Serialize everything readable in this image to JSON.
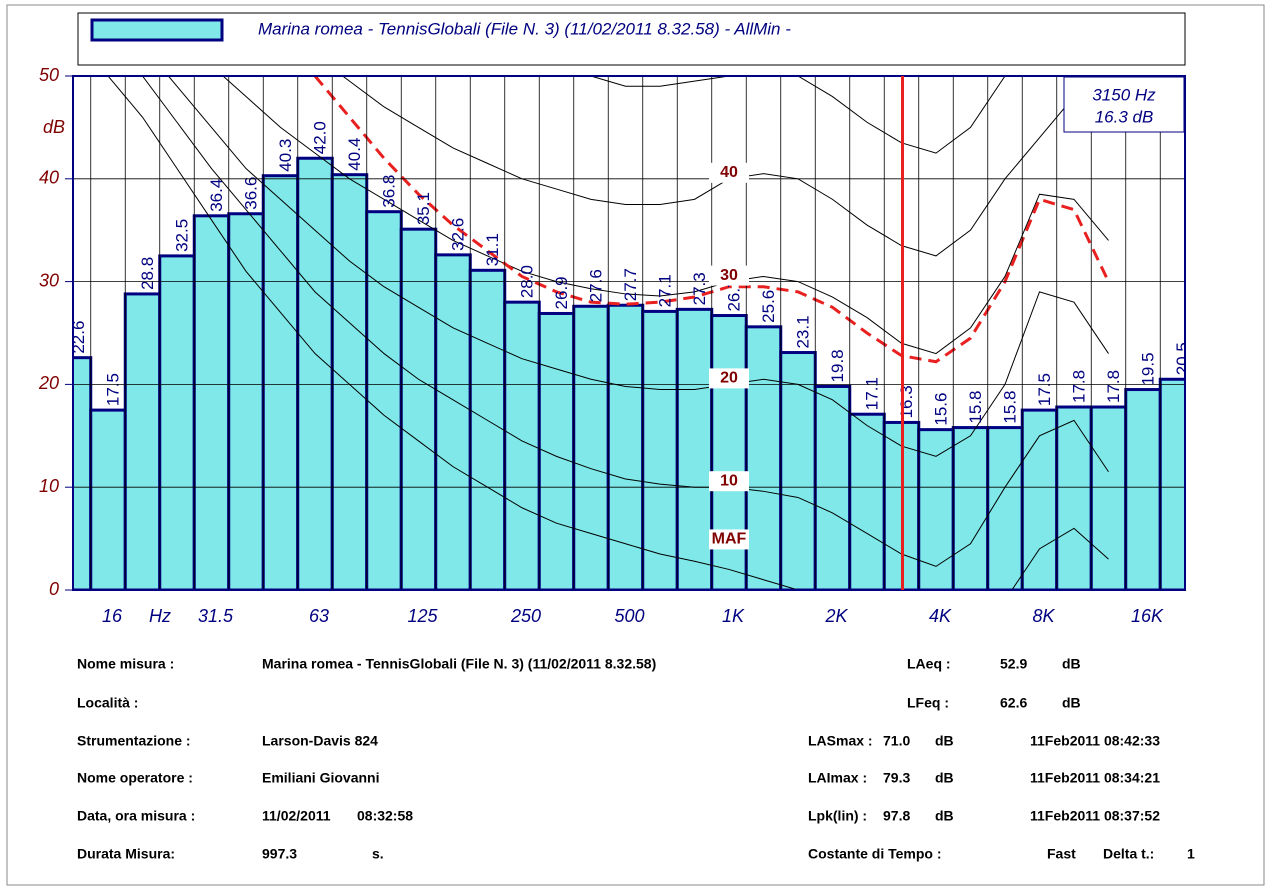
{
  "chart_data": {
    "type": "bar",
    "series": [
      {
        "name": "Marina romea - TennisGlobali (File N. 3) (11/02/2011 8.32.58) - AllMin -",
        "color": "#80e8e8",
        "values": [
          22.6,
          17.5,
          28.8,
          32.5,
          36.4,
          36.6,
          40.3,
          42.0,
          40.4,
          36.8,
          35.1,
          32.6,
          31.1,
          28.0,
          26.9,
          27.6,
          27.7,
          27.1,
          27.3,
          26.7,
          25.6,
          23.1,
          19.8,
          17.1,
          16.3,
          15.6,
          15.8,
          15.8,
          17.5,
          17.8,
          17.8,
          19.5,
          20.5
        ],
        "value_labels": [
          "22.6",
          "17.5",
          "28.8",
          "32.5",
          "36.4",
          "36.6",
          "40.3",
          "42.0",
          "40.4",
          "36.8",
          "35.1",
          "32.6",
          "31.1",
          "28.0",
          "26.9",
          "27.6",
          "27.7",
          "27.1",
          "27.3",
          "26.7",
          "25.6",
          "23.1",
          "19.8",
          "17.1",
          "16.3",
          "15.6",
          "15.8",
          "15.8",
          "17.5",
          "17.8",
          "17.8",
          "19.5",
          "20.5"
        ]
      }
    ],
    "categories": [
      null,
      "16",
      null,
      null,
      "31.5",
      null,
      null,
      "63",
      null,
      null,
      "125",
      null,
      null,
      "250",
      null,
      null,
      "500",
      null,
      null,
      "1K",
      null,
      null,
      "2K",
      null,
      null,
      "4K",
      null,
      null,
      "8K",
      null,
      null,
      "16K",
      null
    ],
    "x_unit": "Hz",
    "y_unit": "dB",
    "ylim": [
      0,
      50
    ],
    "yticks": [
      0,
      10,
      20,
      30,
      40,
      50
    ],
    "grid": true,
    "contours": [
      {
        "label": "MAF",
        "color": "#000000",
        "values": [
          55,
          50,
          46,
          41,
          36,
          31,
          27,
          23,
          20,
          17,
          14.5,
          12,
          10,
          8,
          6.5,
          5.5,
          4.5,
          3.5,
          2.8,
          2,
          1,
          0,
          -1.5,
          -3.5,
          -5,
          -6,
          -5,
          -1,
          4,
          6,
          3,
          null,
          null
        ]
      },
      {
        "label": "10",
        "color": "#000000",
        "values": [
          59,
          55,
          50,
          45.5,
          41,
          37,
          33,
          29,
          26,
          23,
          20.5,
          18.5,
          16.5,
          14.5,
          13,
          11.8,
          10.8,
          10.3,
          10,
          10,
          9.6,
          9,
          7.5,
          5.5,
          3.5,
          2.3,
          4.5,
          10,
          15,
          16.5,
          11.5,
          null,
          null
        ]
      },
      {
        "label": "20",
        "color": "#000000",
        "values": [
          61,
          57,
          53,
          49,
          45,
          41,
          38,
          35,
          32,
          29.5,
          27.5,
          25.5,
          24,
          22.5,
          21.5,
          20.5,
          19.8,
          19.5,
          19.5,
          20,
          20.5,
          20,
          18.5,
          16,
          14,
          13,
          15,
          20,
          29,
          28,
          23,
          null,
          null
        ]
      },
      {
        "label": "30",
        "color": "#000000",
        "values": [
          68,
          63,
          59,
          55,
          51,
          48,
          45,
          42.5,
          40,
          38,
          36,
          34,
          32.5,
          31,
          30,
          29.3,
          28.8,
          28.6,
          29,
          30,
          30.5,
          30,
          28.5,
          26.5,
          24,
          23,
          25.5,
          30.5,
          38.5,
          38,
          34,
          null,
          null
        ]
      },
      {
        "label": "40",
        "color": "#000000",
        "values": [
          75,
          71,
          67,
          63,
          60,
          57,
          54.5,
          52,
          49.5,
          47,
          45,
          43,
          41.5,
          40,
          39,
          38,
          37.5,
          37.5,
          38,
          40,
          40.5,
          40,
          38,
          35.5,
          33.5,
          32.5,
          35,
          40,
          44,
          48,
          52,
          null,
          null
        ]
      },
      {
        "color": "#000000",
        "values": [
          null,
          null,
          null,
          null,
          null,
          null,
          null,
          null,
          null,
          null,
          null,
          null,
          null,
          55,
          52,
          50,
          49,
          49,
          49.5,
          50,
          51,
          50,
          48,
          45.5,
          43.5,
          42.5,
          45,
          50,
          55,
          null,
          null,
          null,
          null
        ]
      }
    ],
    "limit_curve": {
      "color": "#e82020",
      "values": [
        null,
        null,
        null,
        null,
        null,
        null,
        null,
        50,
        46,
        42,
        38.5,
        35.5,
        33,
        30.5,
        29,
        28,
        27.8,
        28,
        28.5,
        29.5,
        29.5,
        29,
        27.5,
        25,
        22.8,
        22.2,
        24.5,
        30,
        38,
        37,
        30,
        null,
        null
      ]
    },
    "cursor": {
      "color": "#e82020",
      "frequency": "3150 Hz",
      "level": "16.3 dB"
    }
  },
  "report": {
    "left": [
      [
        "Nome misura :",
        "Marina romea - TennisGlobali (File N. 3) (11/02/2011 8.32.58)"
      ],
      [
        "Località :"
      ],
      [
        "Strumentazione :",
        "Larson-Davis 824"
      ],
      [
        "Nome operatore :",
        "Emiliani Giovanni"
      ],
      [
        "Data, ora misura :",
        "11/02/2011",
        "08:32:58"
      ],
      [
        "Durata Misura:",
        "997.3",
        "s."
      ]
    ],
    "right": [
      [
        "LAeq :",
        "52.9",
        "dB"
      ],
      [
        "LFeq :",
        "62.6",
        "dB"
      ],
      [
        "LASmax :",
        "71.0",
        "dB",
        "11Feb2011 08:42:33"
      ],
      [
        "LAImax :",
        "79.3",
        "dB",
        "11Feb2011 08:34:21"
      ],
      [
        "Lpk(lin) :",
        "97.8",
        "dB",
        "11Feb2011 08:37:52"
      ],
      [
        "Costante di Tempo :",
        "Fast",
        "Delta t.:",
        "1"
      ]
    ]
  }
}
